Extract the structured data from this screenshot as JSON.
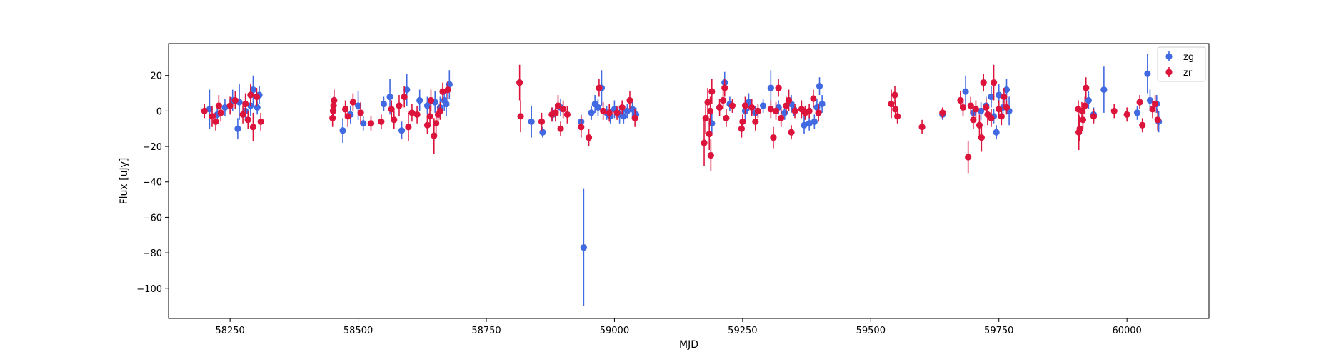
{
  "chart_data": {
    "type": "scatter",
    "title": "",
    "xlabel": "MJD",
    "ylabel": "Flux [uJy]",
    "xlim": [
      58130,
      60160
    ],
    "ylim": [
      -117,
      38
    ],
    "xticks": [
      58250,
      58500,
      58750,
      59000,
      59250,
      59500,
      59750,
      60000
    ],
    "yticks": [
      -100,
      -80,
      -60,
      -40,
      -20,
      0,
      20
    ],
    "grid": false,
    "legend_position": "top-right",
    "series": [
      {
        "name": "zg",
        "color": "#4169e1",
        "marker": "circle",
        "points": [
          {
            "x": 58210,
            "y": 1,
            "err": 11
          },
          {
            "x": 58225,
            "y": -2,
            "err": 5
          },
          {
            "x": 58240,
            "y": 2,
            "err": 5
          },
          {
            "x": 58255,
            "y": 6,
            "err": 6
          },
          {
            "x": 58265,
            "y": -10,
            "err": 6
          },
          {
            "x": 58268,
            "y": 5,
            "err": 10
          },
          {
            "x": 58280,
            "y": 0,
            "err": 5
          },
          {
            "x": 58290,
            "y": 3,
            "err": 6
          },
          {
            "x": 58295,
            "y": 12,
            "err": 8
          },
          {
            "x": 58303,
            "y": 2,
            "err": 4
          },
          {
            "x": 58307,
            "y": 9,
            "err": 5
          },
          {
            "x": 58470,
            "y": -11,
            "err": 7
          },
          {
            "x": 58485,
            "y": -2,
            "err": 5
          },
          {
            "x": 58500,
            "y": 3,
            "err": 8
          },
          {
            "x": 58510,
            "y": -7,
            "err": 4
          },
          {
            "x": 58550,
            "y": 4,
            "err": 4
          },
          {
            "x": 58562,
            "y": 8,
            "err": 10
          },
          {
            "x": 58585,
            "y": -11,
            "err": 5
          },
          {
            "x": 58595,
            "y": 12,
            "err": 9
          },
          {
            "x": 58620,
            "y": 6,
            "err": 6
          },
          {
            "x": 58635,
            "y": 3,
            "err": 5
          },
          {
            "x": 58650,
            "y": 5,
            "err": 6
          },
          {
            "x": 58660,
            "y": 2,
            "err": 6
          },
          {
            "x": 58668,
            "y": 6,
            "err": 6
          },
          {
            "x": 58672,
            "y": 4,
            "err": 7
          },
          {
            "x": 58678,
            "y": 15,
            "err": 8
          },
          {
            "x": 58838,
            "y": -6,
            "err": 9
          },
          {
            "x": 58860,
            "y": -12,
            "err": 3
          },
          {
            "x": 58880,
            "y": -2,
            "err": 4
          },
          {
            "x": 58895,
            "y": 2,
            "err": 5
          },
          {
            "x": 58935,
            "y": -6,
            "err": 4
          },
          {
            "x": 58940,
            "y": -77,
            "err": 33
          },
          {
            "x": 58955,
            "y": -1,
            "err": 4
          },
          {
            "x": 58962,
            "y": 4,
            "err": 5
          },
          {
            "x": 58968,
            "y": 2,
            "err": 5
          },
          {
            "x": 58975,
            "y": 13,
            "err": 10
          },
          {
            "x": 58985,
            "y": -1,
            "err": 4
          },
          {
            "x": 58992,
            "y": -3,
            "err": 4
          },
          {
            "x": 59000,
            "y": 1,
            "err": 5
          },
          {
            "x": 59010,
            "y": -2,
            "err": 5
          },
          {
            "x": 59018,
            "y": -3,
            "err": 4
          },
          {
            "x": 59025,
            "y": 0,
            "err": 4
          },
          {
            "x": 59035,
            "y": 1,
            "err": 5
          },
          {
            "x": 59042,
            "y": -2,
            "err": 4
          },
          {
            "x": 59190,
            "y": -7,
            "err": 6
          },
          {
            "x": 59215,
            "y": 16,
            "err": 6
          },
          {
            "x": 59225,
            "y": 4,
            "err": 4
          },
          {
            "x": 59255,
            "y": 0,
            "err": 5
          },
          {
            "x": 59262,
            "y": 5,
            "err": 5
          },
          {
            "x": 59275,
            "y": -1,
            "err": 4
          },
          {
            "x": 59290,
            "y": 3,
            "err": 4
          },
          {
            "x": 59305,
            "y": 13,
            "err": 10
          },
          {
            "x": 59320,
            "y": 2,
            "err": 4
          },
          {
            "x": 59332,
            "y": -1,
            "err": 4
          },
          {
            "x": 59340,
            "y": 6,
            "err": 6
          },
          {
            "x": 59345,
            "y": 4,
            "err": 5
          },
          {
            "x": 59350,
            "y": 1,
            "err": 4
          },
          {
            "x": 59370,
            "y": -8,
            "err": 5
          },
          {
            "x": 59380,
            "y": -7,
            "err": 4
          },
          {
            "x": 59390,
            "y": -6,
            "err": 4
          },
          {
            "x": 59395,
            "y": 2,
            "err": 5
          },
          {
            "x": 59400,
            "y": 14,
            "err": 5
          },
          {
            "x": 59405,
            "y": 4,
            "err": 5
          },
          {
            "x": 59640,
            "y": -2,
            "err": 3
          },
          {
            "x": 59685,
            "y": 11,
            "err": 9
          },
          {
            "x": 59700,
            "y": -1,
            "err": 4
          },
          {
            "x": 59715,
            "y": 0,
            "err": 5
          },
          {
            "x": 59725,
            "y": 3,
            "err": 5
          },
          {
            "x": 59735,
            "y": 8,
            "err": 6
          },
          {
            "x": 59740,
            "y": -3,
            "err": 4
          },
          {
            "x": 59745,
            "y": -12,
            "err": 4
          },
          {
            "x": 59750,
            "y": 9,
            "err": 6
          },
          {
            "x": 59758,
            "y": 2,
            "err": 5
          },
          {
            "x": 59765,
            "y": 12,
            "err": 6
          },
          {
            "x": 59770,
            "y": 0,
            "err": 8
          },
          {
            "x": 59925,
            "y": 6,
            "err": 5
          },
          {
            "x": 59935,
            "y": -2,
            "err": 4
          },
          {
            "x": 59955,
            "y": 12,
            "err": 13
          },
          {
            "x": 60020,
            "y": -1,
            "err": 4
          },
          {
            "x": 60040,
            "y": 21,
            "err": 11
          },
          {
            "x": 60045,
            "y": 6,
            "err": 6
          },
          {
            "x": 60058,
            "y": 4,
            "err": 5
          },
          {
            "x": 60062,
            "y": -6,
            "err": 6
          }
        ]
      },
      {
        "name": "zr",
        "color": "#dc143c",
        "marker": "circle",
        "points": [
          {
            "x": 58200,
            "y": 0,
            "err": 4
          },
          {
            "x": 58215,
            "y": -3,
            "err": 6
          },
          {
            "x": 58222,
            "y": -6,
            "err": 5
          },
          {
            "x": 58228,
            "y": 3,
            "err": 6
          },
          {
            "x": 58232,
            "y": -1,
            "err": 5
          },
          {
            "x": 58250,
            "y": 3,
            "err": 5
          },
          {
            "x": 58260,
            "y": 6,
            "err": 5
          },
          {
            "x": 58275,
            "y": -2,
            "err": 5
          },
          {
            "x": 58280,
            "y": 4,
            "err": 6
          },
          {
            "x": 58285,
            "y": -5,
            "err": 5
          },
          {
            "x": 58290,
            "y": 9,
            "err": 6
          },
          {
            "x": 58295,
            "y": -9,
            "err": 8
          },
          {
            "x": 58302,
            "y": 8,
            "err": 5
          },
          {
            "x": 58310,
            "y": -6,
            "err": 5
          },
          {
            "x": 58450,
            "y": -4,
            "err": 5
          },
          {
            "x": 58451,
            "y": 0,
            "err": 5
          },
          {
            "x": 58452,
            "y": 3,
            "err": 5
          },
          {
            "x": 58453,
            "y": 6,
            "err": 6
          },
          {
            "x": 58475,
            "y": 1,
            "err": 5
          },
          {
            "x": 58480,
            "y": -3,
            "err": 6
          },
          {
            "x": 58490,
            "y": 5,
            "err": 5
          },
          {
            "x": 58505,
            "y": -1,
            "err": 6
          },
          {
            "x": 58525,
            "y": -7,
            "err": 4
          },
          {
            "x": 58545,
            "y": -6,
            "err": 4
          },
          {
            "x": 58565,
            "y": 1,
            "err": 5
          },
          {
            "x": 58570,
            "y": -5,
            "err": 5
          },
          {
            "x": 58580,
            "y": 3,
            "err": 6
          },
          {
            "x": 58590,
            "y": 8,
            "err": 6
          },
          {
            "x": 58598,
            "y": -9,
            "err": 8
          },
          {
            "x": 58605,
            "y": -1,
            "err": 5
          },
          {
            "x": 58615,
            "y": -2,
            "err": 5
          },
          {
            "x": 58635,
            "y": -8,
            "err": 5
          },
          {
            "x": 58640,
            "y": -3,
            "err": 6
          },
          {
            "x": 58642,
            "y": 6,
            "err": 6
          },
          {
            "x": 58648,
            "y": -14,
            "err": 10
          },
          {
            "x": 58652,
            "y": -7,
            "err": 6
          },
          {
            "x": 58656,
            "y": -2,
            "err": 5
          },
          {
            "x": 58660,
            "y": 0,
            "err": 5
          },
          {
            "x": 58665,
            "y": 11,
            "err": 5
          },
          {
            "x": 58675,
            "y": 12,
            "err": 5
          },
          {
            "x": 58815,
            "y": 16,
            "err": 10
          },
          {
            "x": 58817,
            "y": -3,
            "err": 9
          },
          {
            "x": 58858,
            "y": -6,
            "err": 5
          },
          {
            "x": 58878,
            "y": -2,
            "err": 4
          },
          {
            "x": 58885,
            "y": -1,
            "err": 5
          },
          {
            "x": 58890,
            "y": 3,
            "err": 6
          },
          {
            "x": 58895,
            "y": -10,
            "err": 4
          },
          {
            "x": 58900,
            "y": 1,
            "err": 5
          },
          {
            "x": 58908,
            "y": -2,
            "err": 5
          },
          {
            "x": 58935,
            "y": -9,
            "err": 6
          },
          {
            "x": 58950,
            "y": -15,
            "err": 5
          },
          {
            "x": 58970,
            "y": 13,
            "err": 5
          },
          {
            "x": 58978,
            "y": 0,
            "err": 5
          },
          {
            "x": 58990,
            "y": -1,
            "err": 5
          },
          {
            "x": 59005,
            "y": -1,
            "err": 4
          },
          {
            "x": 59015,
            "y": 2,
            "err": 4
          },
          {
            "x": 59030,
            "y": 6,
            "err": 5
          },
          {
            "x": 59040,
            "y": -4,
            "err": 5
          },
          {
            "x": 59175,
            "y": -18,
            "err": 13
          },
          {
            "x": 59178,
            "y": -4,
            "err": 9
          },
          {
            "x": 59182,
            "y": 5,
            "err": 8
          },
          {
            "x": 59185,
            "y": -13,
            "err": 9
          },
          {
            "x": 59187,
            "y": 0,
            "err": 8
          },
          {
            "x": 59188,
            "y": -25,
            "err": 9
          },
          {
            "x": 59190,
            "y": 11,
            "err": 7
          },
          {
            "x": 59205,
            "y": 2,
            "err": 5
          },
          {
            "x": 59212,
            "y": 6,
            "err": 5
          },
          {
            "x": 59215,
            "y": 13,
            "err": 5
          },
          {
            "x": 59218,
            "y": -4,
            "err": 5
          },
          {
            "x": 59230,
            "y": 3,
            "err": 4
          },
          {
            "x": 59248,
            "y": -10,
            "err": 5
          },
          {
            "x": 59250,
            "y": -6,
            "err": 4
          },
          {
            "x": 59255,
            "y": 3,
            "err": 5
          },
          {
            "x": 59268,
            "y": 2,
            "err": 5
          },
          {
            "x": 59275,
            "y": -6,
            "err": 5
          },
          {
            "x": 59280,
            "y": 0,
            "err": 4
          },
          {
            "x": 59305,
            "y": 1,
            "err": 5
          },
          {
            "x": 59310,
            "y": -15,
            "err": 6
          },
          {
            "x": 59315,
            "y": 0,
            "err": 5
          },
          {
            "x": 59320,
            "y": 13,
            "err": 5
          },
          {
            "x": 59325,
            "y": -4,
            "err": 5
          },
          {
            "x": 59335,
            "y": 3,
            "err": 5
          },
          {
            "x": 59340,
            "y": 6,
            "err": 6
          },
          {
            "x": 59345,
            "y": -12,
            "err": 4
          },
          {
            "x": 59352,
            "y": 0,
            "err": 4
          },
          {
            "x": 59365,
            "y": 1,
            "err": 5
          },
          {
            "x": 59372,
            "y": -1,
            "err": 4
          },
          {
            "x": 59380,
            "y": 0,
            "err": 4
          },
          {
            "x": 59388,
            "y": 7,
            "err": 5
          },
          {
            "x": 59398,
            "y": -1,
            "err": 5
          },
          {
            "x": 59540,
            "y": 4,
            "err": 8
          },
          {
            "x": 59547,
            "y": 9,
            "err": 5
          },
          {
            "x": 59548,
            "y": 1,
            "err": 5
          },
          {
            "x": 59552,
            "y": -3,
            "err": 4
          },
          {
            "x": 59600,
            "y": -9,
            "err": 4
          },
          {
            "x": 59640,
            "y": -1,
            "err": 3
          },
          {
            "x": 59675,
            "y": 6,
            "err": 5
          },
          {
            "x": 59680,
            "y": 2,
            "err": 5
          },
          {
            "x": 59690,
            "y": -26,
            "err": 9
          },
          {
            "x": 59695,
            "y": 3,
            "err": 5
          },
          {
            "x": 59700,
            "y": -5,
            "err": 5
          },
          {
            "x": 59705,
            "y": 1,
            "err": 5
          },
          {
            "x": 59712,
            "y": -8,
            "err": 6
          },
          {
            "x": 59716,
            "y": -15,
            "err": 8
          },
          {
            "x": 59720,
            "y": 16,
            "err": 5
          },
          {
            "x": 59725,
            "y": 2,
            "err": 5
          },
          {
            "x": 59728,
            "y": -2,
            "err": 6
          },
          {
            "x": 59735,
            "y": -4,
            "err": 5
          },
          {
            "x": 59740,
            "y": 16,
            "err": 10
          },
          {
            "x": 59750,
            "y": 1,
            "err": 5
          },
          {
            "x": 59755,
            "y": -3,
            "err": 5
          },
          {
            "x": 59760,
            "y": 8,
            "err": 5
          },
          {
            "x": 59765,
            "y": 2,
            "err": 4
          },
          {
            "x": 59905,
            "y": 1,
            "err": 5
          },
          {
            "x": 59906,
            "y": -12,
            "err": 10
          },
          {
            "x": 59908,
            "y": -10,
            "err": 7
          },
          {
            "x": 59912,
            "y": 0,
            "err": 5
          },
          {
            "x": 59914,
            "y": -5,
            "err": 5
          },
          {
            "x": 59918,
            "y": 3,
            "err": 5
          },
          {
            "x": 59920,
            "y": 13,
            "err": 6
          },
          {
            "x": 59935,
            "y": -3,
            "err": 4
          },
          {
            "x": 59975,
            "y": 0,
            "err": 4
          },
          {
            "x": 60000,
            "y": -2,
            "err": 4
          },
          {
            "x": 60025,
            "y": 5,
            "err": 4
          },
          {
            "x": 60030,
            "y": -8,
            "err": 4
          },
          {
            "x": 60050,
            "y": 1,
            "err": 5
          },
          {
            "x": 60055,
            "y": 4,
            "err": 5
          },
          {
            "x": 60060,
            "y": -5,
            "err": 6
          }
        ]
      }
    ]
  }
}
